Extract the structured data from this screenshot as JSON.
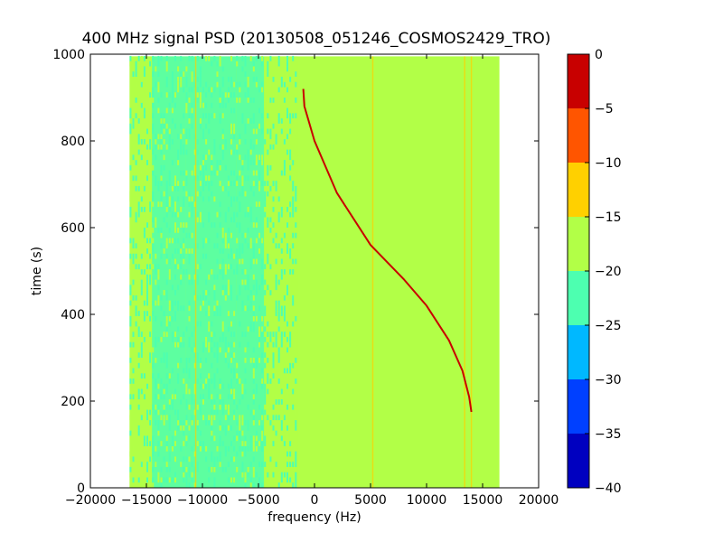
{
  "chart_data": {
    "type": "heatmap",
    "title": "400 MHz signal PSD (20130508_051246_COSMOS2429_TRO)",
    "xlabel": "frequency (Hz)",
    "ylabel": "time (s)",
    "xlim": [
      -20000,
      20000
    ],
    "ylim": [
      0,
      1000
    ],
    "x_ticks": [
      -20000,
      -15000,
      -10000,
      -5000,
      0,
      5000,
      10000,
      15000,
      20000
    ],
    "x_tick_labels": [
      "−20000",
      "−15000",
      "−10000",
      "−5000",
      "0",
      "5000",
      "10000",
      "15000",
      "20000"
    ],
    "y_ticks": [
      0,
      200,
      400,
      600,
      800,
      1000
    ],
    "y_tick_labels": [
      "0",
      "200",
      "400",
      "600",
      "800",
      "1000"
    ],
    "data_extent": {
      "freq_min": -16500,
      "freq_max": 16500,
      "time_min": 0,
      "time_max": 995
    },
    "background_level": -17.5,
    "bands": [
      {
        "freq_from": -16500,
        "freq_to": -14500,
        "level": -19.5
      },
      {
        "freq_from": -14500,
        "freq_to": -11500,
        "level": -21.5
      },
      {
        "freq_from": -11500,
        "freq_to": -7000,
        "level": -23
      },
      {
        "freq_from": -7000,
        "freq_to": -4500,
        "level": -21.5
      },
      {
        "freq_from": -4500,
        "freq_to": -1500,
        "level": -19.5
      }
    ],
    "vertical_lines": [
      {
        "freq": 5200,
        "level": -12
      },
      {
        "freq": 13400,
        "level": -12
      },
      {
        "freq": 14000,
        "level": -13
      },
      {
        "freq": -10600,
        "level": -13
      }
    ],
    "signal_trace": {
      "level": -2,
      "points": [
        {
          "freq": -1000,
          "time": 920
        },
        {
          "freq": -900,
          "time": 880
        },
        {
          "freq": 0,
          "time": 800
        },
        {
          "freq": 2000,
          "time": 680
        },
        {
          "freq": 5000,
          "time": 560
        },
        {
          "freq": 8000,
          "time": 480
        },
        {
          "freq": 10000,
          "time": 420
        },
        {
          "freq": 12000,
          "time": 340
        },
        {
          "freq": 13200,
          "time": 270
        },
        {
          "freq": 13800,
          "time": 210
        },
        {
          "freq": 14000,
          "time": 175
        }
      ]
    },
    "colorbar": {
      "levels": [
        -40,
        -35,
        -30,
        -25,
        -20,
        -15,
        -10,
        -5,
        0
      ],
      "tick_labels": [
        "−40",
        "−35",
        "−30",
        "−25",
        "−20",
        "−15",
        "−10",
        "−5",
        "0"
      ],
      "colors": [
        "#0000c0",
        "#0040ff",
        "#00b8ff",
        "#4dffb0",
        "#b2ff47",
        "#ffd000",
        "#ff5500",
        "#c80000"
      ]
    }
  }
}
